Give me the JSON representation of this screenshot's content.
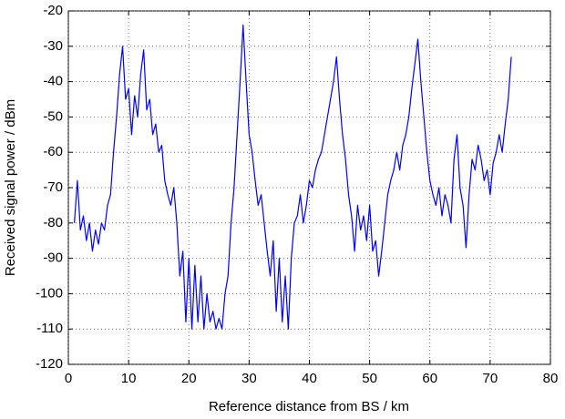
{
  "chart_data": {
    "type": "line",
    "xlabel": "Reference distance from BS / km",
    "ylabel": "Received signal power / dBm",
    "xlim": [
      0,
      80
    ],
    "ylim": [
      -120,
      -20
    ],
    "xticks": [
      0,
      10,
      20,
      30,
      40,
      50,
      60,
      70,
      80
    ],
    "yticks": [
      -120,
      -110,
      -100,
      -90,
      -80,
      -70,
      -60,
      -50,
      -40,
      -30,
      -20
    ],
    "grid": true,
    "x": [
      1,
      1.5,
      2,
      2.5,
      3,
      3.5,
      4,
      4.5,
      5,
      5.5,
      6,
      6.5,
      7,
      7.5,
      8,
      8.5,
      9,
      9.5,
      10,
      10.5,
      11,
      11.5,
      12,
      12.5,
      13,
      13.5,
      14,
      14.5,
      15,
      15.5,
      16,
      16.5,
      17,
      17.5,
      18,
      18.5,
      19,
      19.5,
      20,
      20.5,
      21,
      21.5,
      22,
      22.5,
      23,
      23.5,
      24,
      24.5,
      25,
      25.5,
      26,
      26.5,
      27,
      27.5,
      28,
      28.5,
      29,
      29.5,
      30,
      30.5,
      31,
      31.5,
      32,
      32.5,
      33,
      33.5,
      34,
      34.5,
      35,
      35.5,
      36,
      36.5,
      37,
      37.5,
      38,
      38.5,
      39,
      39.5,
      40,
      40.5,
      41,
      41.5,
      42,
      42.5,
      43,
      43.5,
      44,
      44.5,
      45,
      45.5,
      46,
      46.5,
      47,
      47.5,
      48,
      48.5,
      49,
      49.5,
      50,
      50.5,
      51,
      51.5,
      52,
      52.5,
      53,
      53.5,
      54,
      54.5,
      55,
      55.5,
      56,
      56.5,
      57,
      57.5,
      58,
      58.5,
      59,
      59.5,
      60,
      60.5,
      61,
      61.5,
      62,
      62.5,
      63,
      63.5,
      64,
      64.5,
      65,
      65.5,
      66,
      66.5,
      67,
      67.5,
      68,
      68.5,
      69,
      69.5,
      70,
      70.5,
      71,
      71.5,
      72,
      72.5,
      73,
      73.5
    ],
    "series": [
      {
        "name": "Received signal power",
        "color": "#0000ff",
        "values": [
          -80,
          -68,
          -82,
          -78,
          -85,
          -80,
          -88,
          -82,
          -86,
          -80,
          -82,
          -75,
          -72,
          -60,
          -50,
          -38,
          -30,
          -45,
          -42,
          -55,
          -44,
          -50,
          -38,
          -31,
          -48,
          -45,
          -55,
          -52,
          -60,
          -58,
          -68,
          -72,
          -75,
          -70,
          -80,
          -95,
          -88,
          -108,
          -90,
          -110,
          -92,
          -108,
          -95,
          -110,
          -100,
          -108,
          -105,
          -110,
          -107,
          -110,
          -100,
          -95,
          -80,
          -70,
          -55,
          -40,
          -24,
          -40,
          -55,
          -60,
          -68,
          -75,
          -72,
          -80,
          -88,
          -95,
          -85,
          -105,
          -90,
          -108,
          -95,
          -110,
          -90,
          -80,
          -78,
          -72,
          -80,
          -75,
          -68,
          -70,
          -65,
          -62,
          -60,
          -55,
          -50,
          -45,
          -40,
          -33,
          -45,
          -55,
          -62,
          -72,
          -78,
          -88,
          -75,
          -82,
          -78,
          -85,
          -75,
          -88,
          -85,
          -95,
          -88,
          -80,
          -72,
          -68,
          -65,
          -60,
          -65,
          -58,
          -55,
          -50,
          -42,
          -35,
          -28,
          -40,
          -50,
          -60,
          -68,
          -72,
          -75,
          -70,
          -78,
          -72,
          -75,
          -80,
          -62,
          -55,
          -70,
          -75,
          -87,
          -72,
          -62,
          -65,
          -58,
          -62,
          -68,
          -65,
          -72,
          -63,
          -60,
          -55,
          -60,
          -52,
          -45,
          -33
        ]
      }
    ]
  }
}
